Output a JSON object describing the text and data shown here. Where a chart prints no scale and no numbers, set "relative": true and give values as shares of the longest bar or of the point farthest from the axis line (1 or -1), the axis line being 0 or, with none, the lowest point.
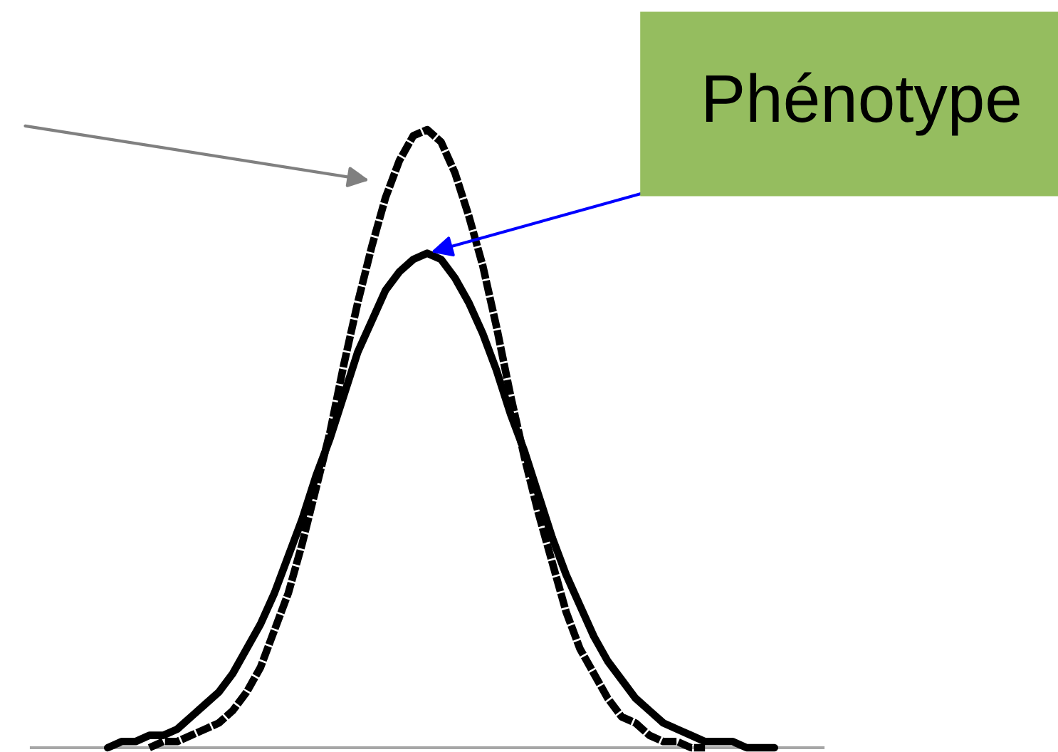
{
  "chart_data": {
    "type": "line",
    "relative": true,
    "categories": [
      null,
      null,
      null,
      null,
      null,
      null,
      null,
      null,
      null,
      null,
      null,
      null,
      null,
      null,
      null,
      null,
      null,
      null,
      null,
      null,
      null,
      null,
      null,
      null,
      null,
      null,
      null,
      null,
      null,
      null,
      null,
      null,
      null,
      null,
      null,
      null,
      null,
      null,
      null,
      null,
      null,
      null,
      null,
      null,
      null,
      null,
      null,
      null,
      null,
      null,
      null,
      null,
      null,
      null,
      null,
      null,
      null
    ],
    "series": [
      {
        "color": "#000000",
        "line_style": "dashed",
        "values": [
          null,
          null,
          null,
          null,
          null,
          null,
          null,
          null,
          0.0,
          0.01,
          0.01,
          0.02,
          0.03,
          0.04,
          0.06,
          0.09,
          0.13,
          0.19,
          0.25,
          0.33,
          0.42,
          0.51,
          0.62,
          0.72,
          0.81,
          0.89,
          0.95,
          0.99,
          1.0,
          0.98,
          0.93,
          0.86,
          0.78,
          0.68,
          0.57,
          0.47,
          0.38,
          0.3,
          0.22,
          0.16,
          0.12,
          0.08,
          0.05,
          0.04,
          0.02,
          0.01,
          0.01,
          0.0,
          0.0,
          null,
          null,
          null,
          null,
          null,
          null,
          null,
          null
        ]
      },
      {
        "color": "#000000",
        "line_style": "solid",
        "values": [
          null,
          null,
          null,
          null,
          null,
          0.0,
          0.01,
          0.01,
          0.02,
          0.02,
          0.03,
          0.05,
          0.07,
          0.09,
          0.12,
          0.16,
          0.2,
          0.25,
          0.31,
          0.37,
          0.44,
          0.5,
          0.57,
          0.64,
          0.69,
          0.74,
          0.77,
          0.79,
          0.8,
          0.79,
          0.76,
          0.72,
          0.67,
          0.61,
          0.54,
          0.48,
          0.41,
          0.34,
          0.28,
          0.23,
          0.18,
          0.14,
          0.11,
          0.08,
          0.06,
          0.04,
          0.03,
          0.02,
          0.01,
          0.01,
          0.01,
          0.0,
          0.0,
          0.0,
          null,
          null,
          null
        ]
      }
    ],
    "annotations": [
      "Phénotype"
    ]
  }
}
